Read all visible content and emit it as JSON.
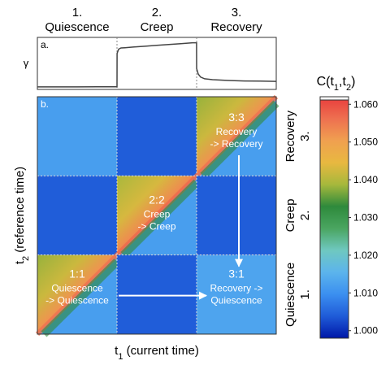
{
  "chart_data": [
    {
      "type": "line",
      "panel_label": "a.",
      "ylabel": "γ",
      "phases": [
        {
          "number": "1.",
          "name": "Quiescence"
        },
        {
          "number": "2.",
          "name": "Creep"
        },
        {
          "number": "3.",
          "name": "Recovery"
        }
      ],
      "x": [
        0,
        0.25,
        0.5,
        0.75,
        1.0,
        1.001,
        1.02,
        1.05,
        1.1,
        1.2,
        1.35,
        1.5,
        1.65,
        1.8,
        1.95,
        1.999,
        2.0,
        2.02,
        2.05,
        2.1,
        2.2,
        2.4,
        2.6,
        2.8,
        3.0
      ],
      "values": [
        0.02,
        0.02,
        0.021,
        0.022,
        0.025,
        0.8,
        0.9,
        0.93,
        0.935,
        0.95,
        0.97,
        0.99,
        1.01,
        1.03,
        1.05,
        1.05,
        0.45,
        0.32,
        0.25,
        0.21,
        0.19,
        0.17,
        0.16,
        0.155,
        0.15
      ],
      "grid": false
    },
    {
      "type": "heatmap",
      "panel_label": "b.",
      "title": "C(t1,t2)",
      "xlabel": "t1 (current time)",
      "ylabel": "t2 (reference time)",
      "colorbar": {
        "ticks": [
          "1.000",
          "1.010",
          "1.020",
          "1.030",
          "1.040",
          "1.050",
          "1.060"
        ],
        "range": [
          0.998,
          1.062
        ],
        "colors": [
          "#0018a8",
          "#1f5bd8",
          "#3b8ff0",
          "#5cb4ec",
          "#6fc8c0",
          "#4aa560",
          "#2e8a3c",
          "#a6b83c",
          "#e8b840",
          "#f0a050",
          "#ee7050",
          "#e83c3c"
        ]
      },
      "blocks": [
        {
          "row": "Recovery",
          "col": "Quiescence",
          "value": 1.012
        },
        {
          "row": "Recovery",
          "col": "Creep",
          "value": 1.004
        },
        {
          "row": "Recovery",
          "col": "Recovery",
          "value": 1.046,
          "label": "3:3\nRecovery\n-> Recovery"
        },
        {
          "row": "Creep",
          "col": "Quiescence",
          "value": 1.004
        },
        {
          "row": "Creep",
          "col": "Creep",
          "value": 1.047,
          "label": "2:2\nCreep\n-> Creep"
        },
        {
          "row": "Creep",
          "col": "Recovery",
          "value": 1.004
        },
        {
          "row": "Quiescence",
          "col": "Quiescence",
          "value": 1.046,
          "label": "1:1\nQuiescence\n-> Quiescence"
        },
        {
          "row": "Quiescence",
          "col": "Creep",
          "value": 1.004
        },
        {
          "row": "Quiescence",
          "col": "Recovery",
          "value": 1.013,
          "label": "3:1\nRecovery ->\nQuiescence"
        }
      ],
      "row_labels": [
        {
          "number": "3.",
          "name": "Recovery"
        },
        {
          "number": "2.",
          "name": "Creep"
        },
        {
          "number": "1.",
          "name": "Quiescence"
        }
      ]
    }
  ]
}
